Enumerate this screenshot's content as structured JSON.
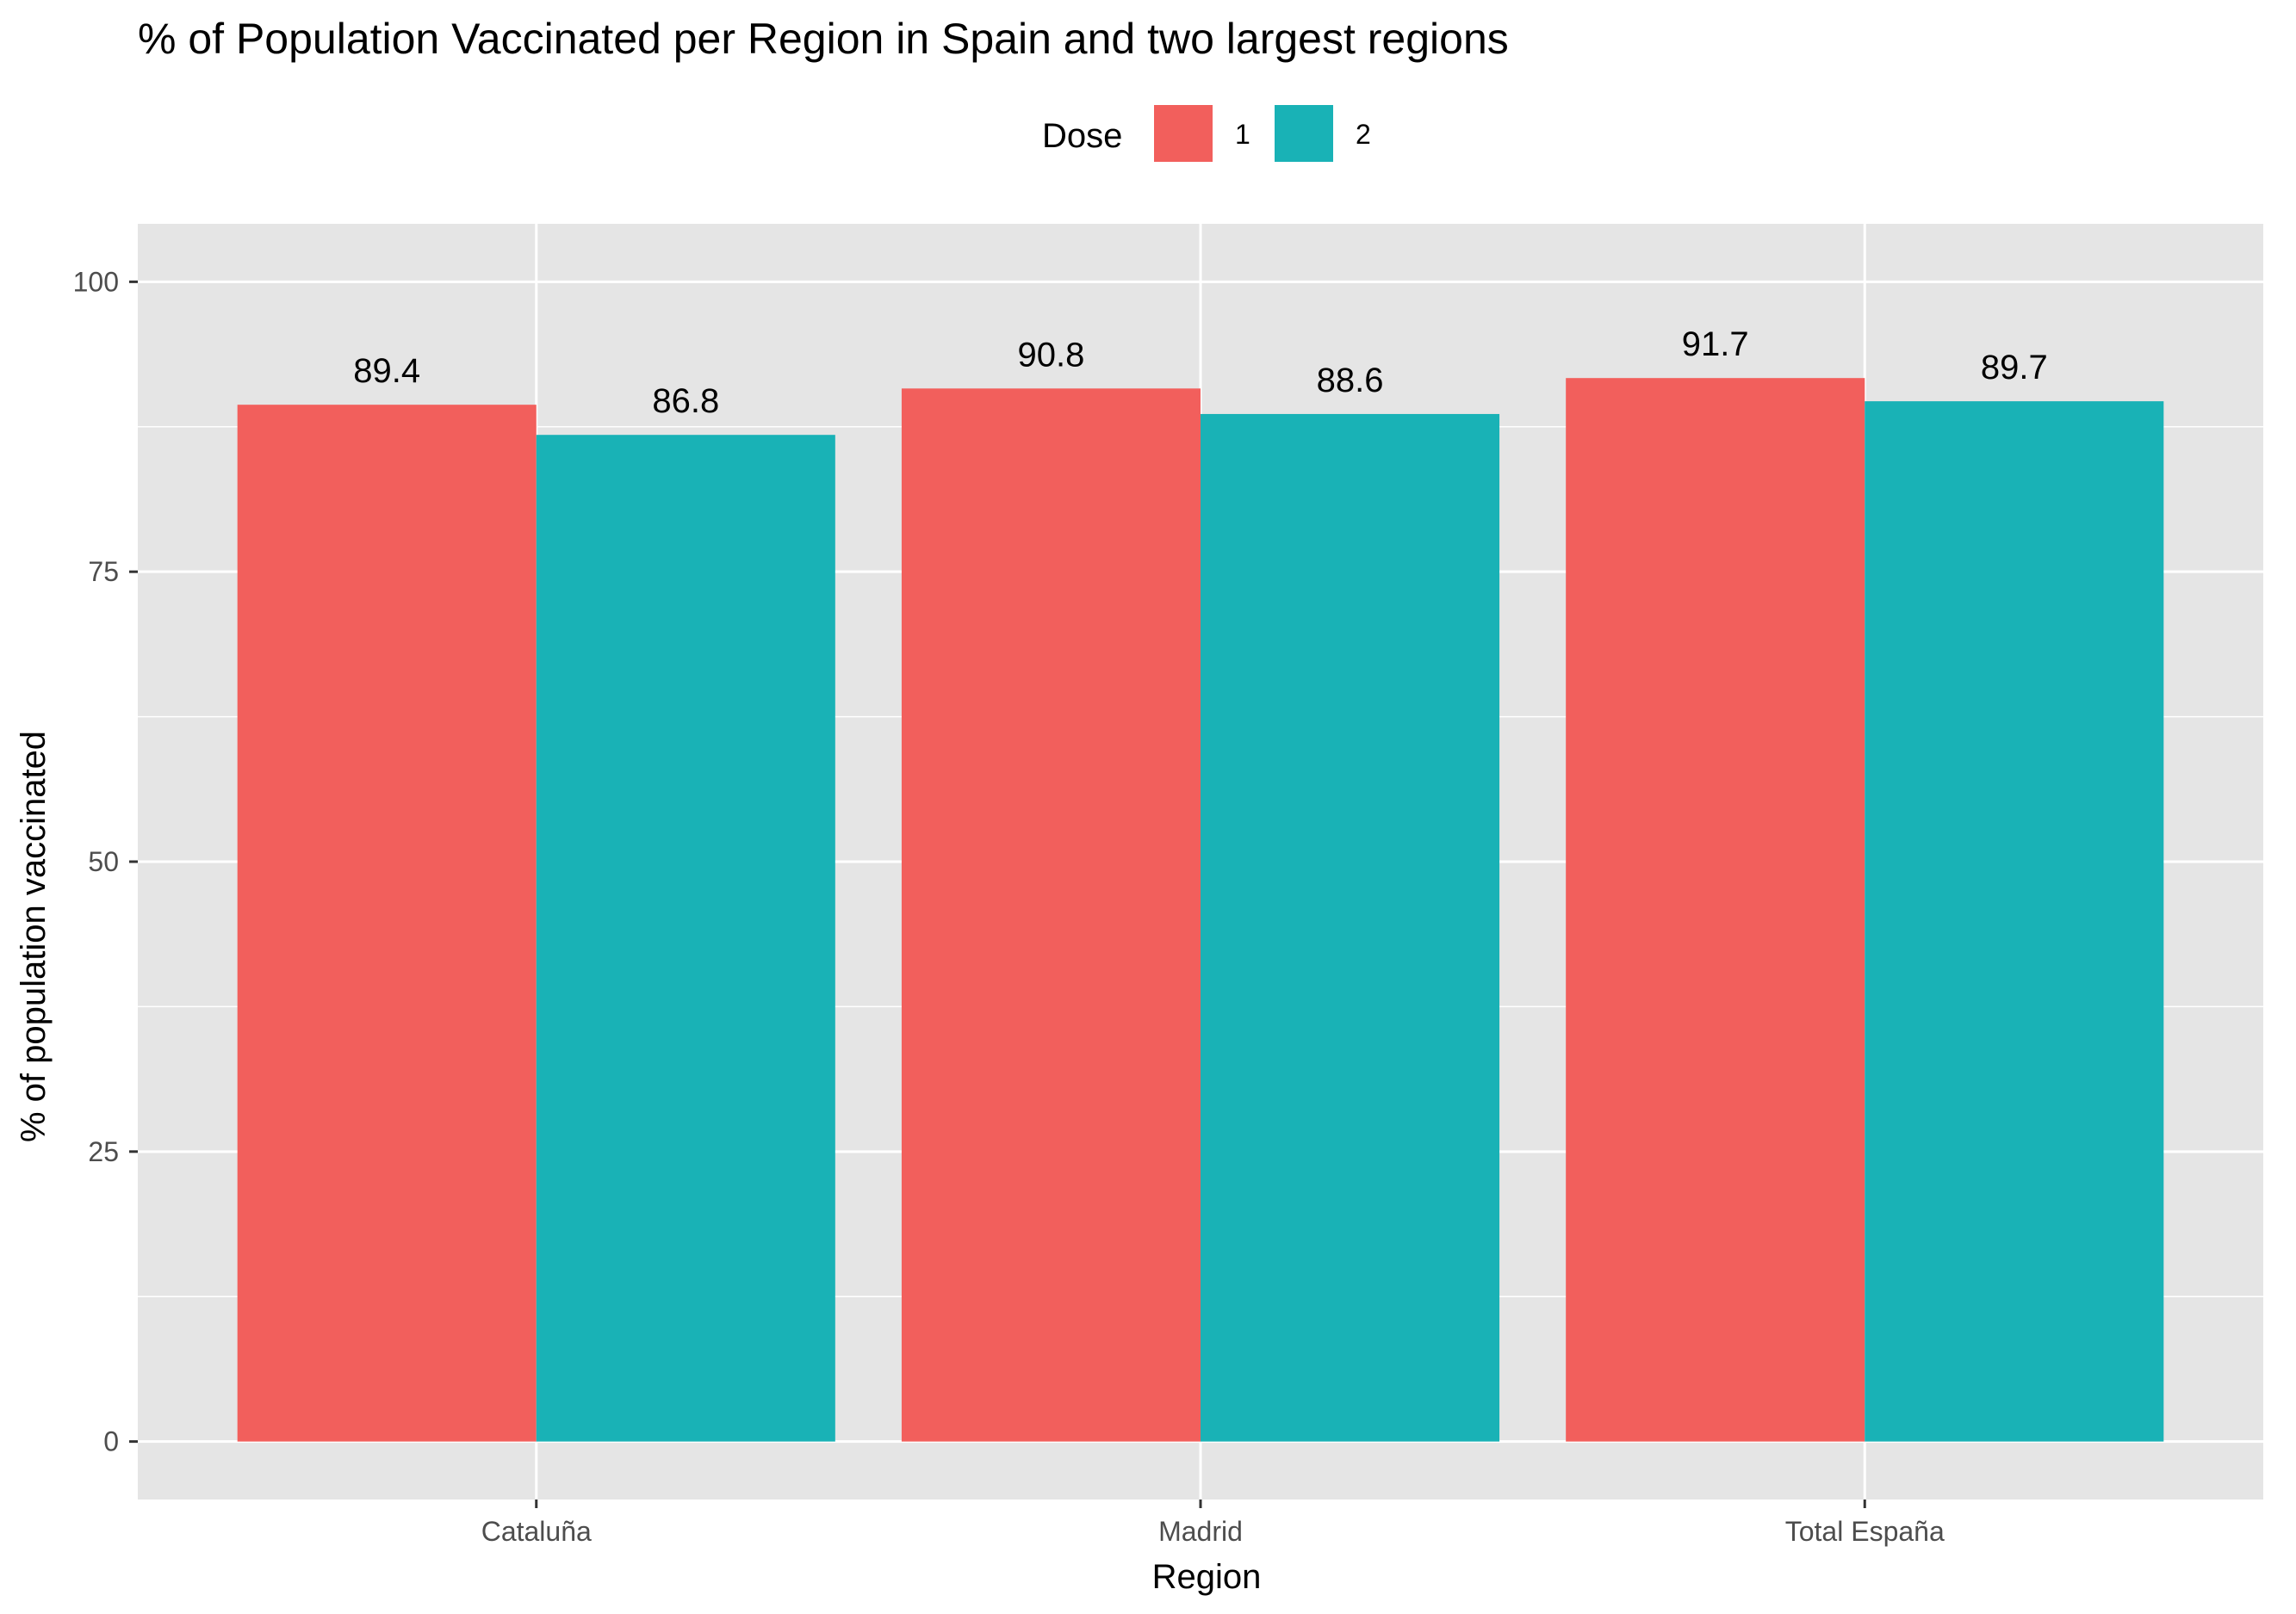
{
  "chart_data": {
    "type": "bar",
    "title": "% of Population Vaccinated per Region in Spain and two largest regions",
    "xlabel": "Region",
    "ylabel": "% of population vaccinated",
    "categories": [
      "Cataluña",
      "Madrid",
      "Total España"
    ],
    "series": [
      {
        "name": "1",
        "values": [
          89.4,
          90.8,
          91.7
        ],
        "color": "#F25F5C"
      },
      {
        "name": "2",
        "values": [
          86.8,
          88.6,
          89.7
        ],
        "color": "#19B2B6"
      }
    ],
    "ylim": [
      -5,
      105
    ],
    "yticks": [
      0,
      25,
      50,
      75,
      100
    ],
    "legend": {
      "title": "Dose",
      "position": "top"
    },
    "grid": true,
    "panel_color": "#E5E5E5",
    "grid_color": "#FFFFFF"
  }
}
